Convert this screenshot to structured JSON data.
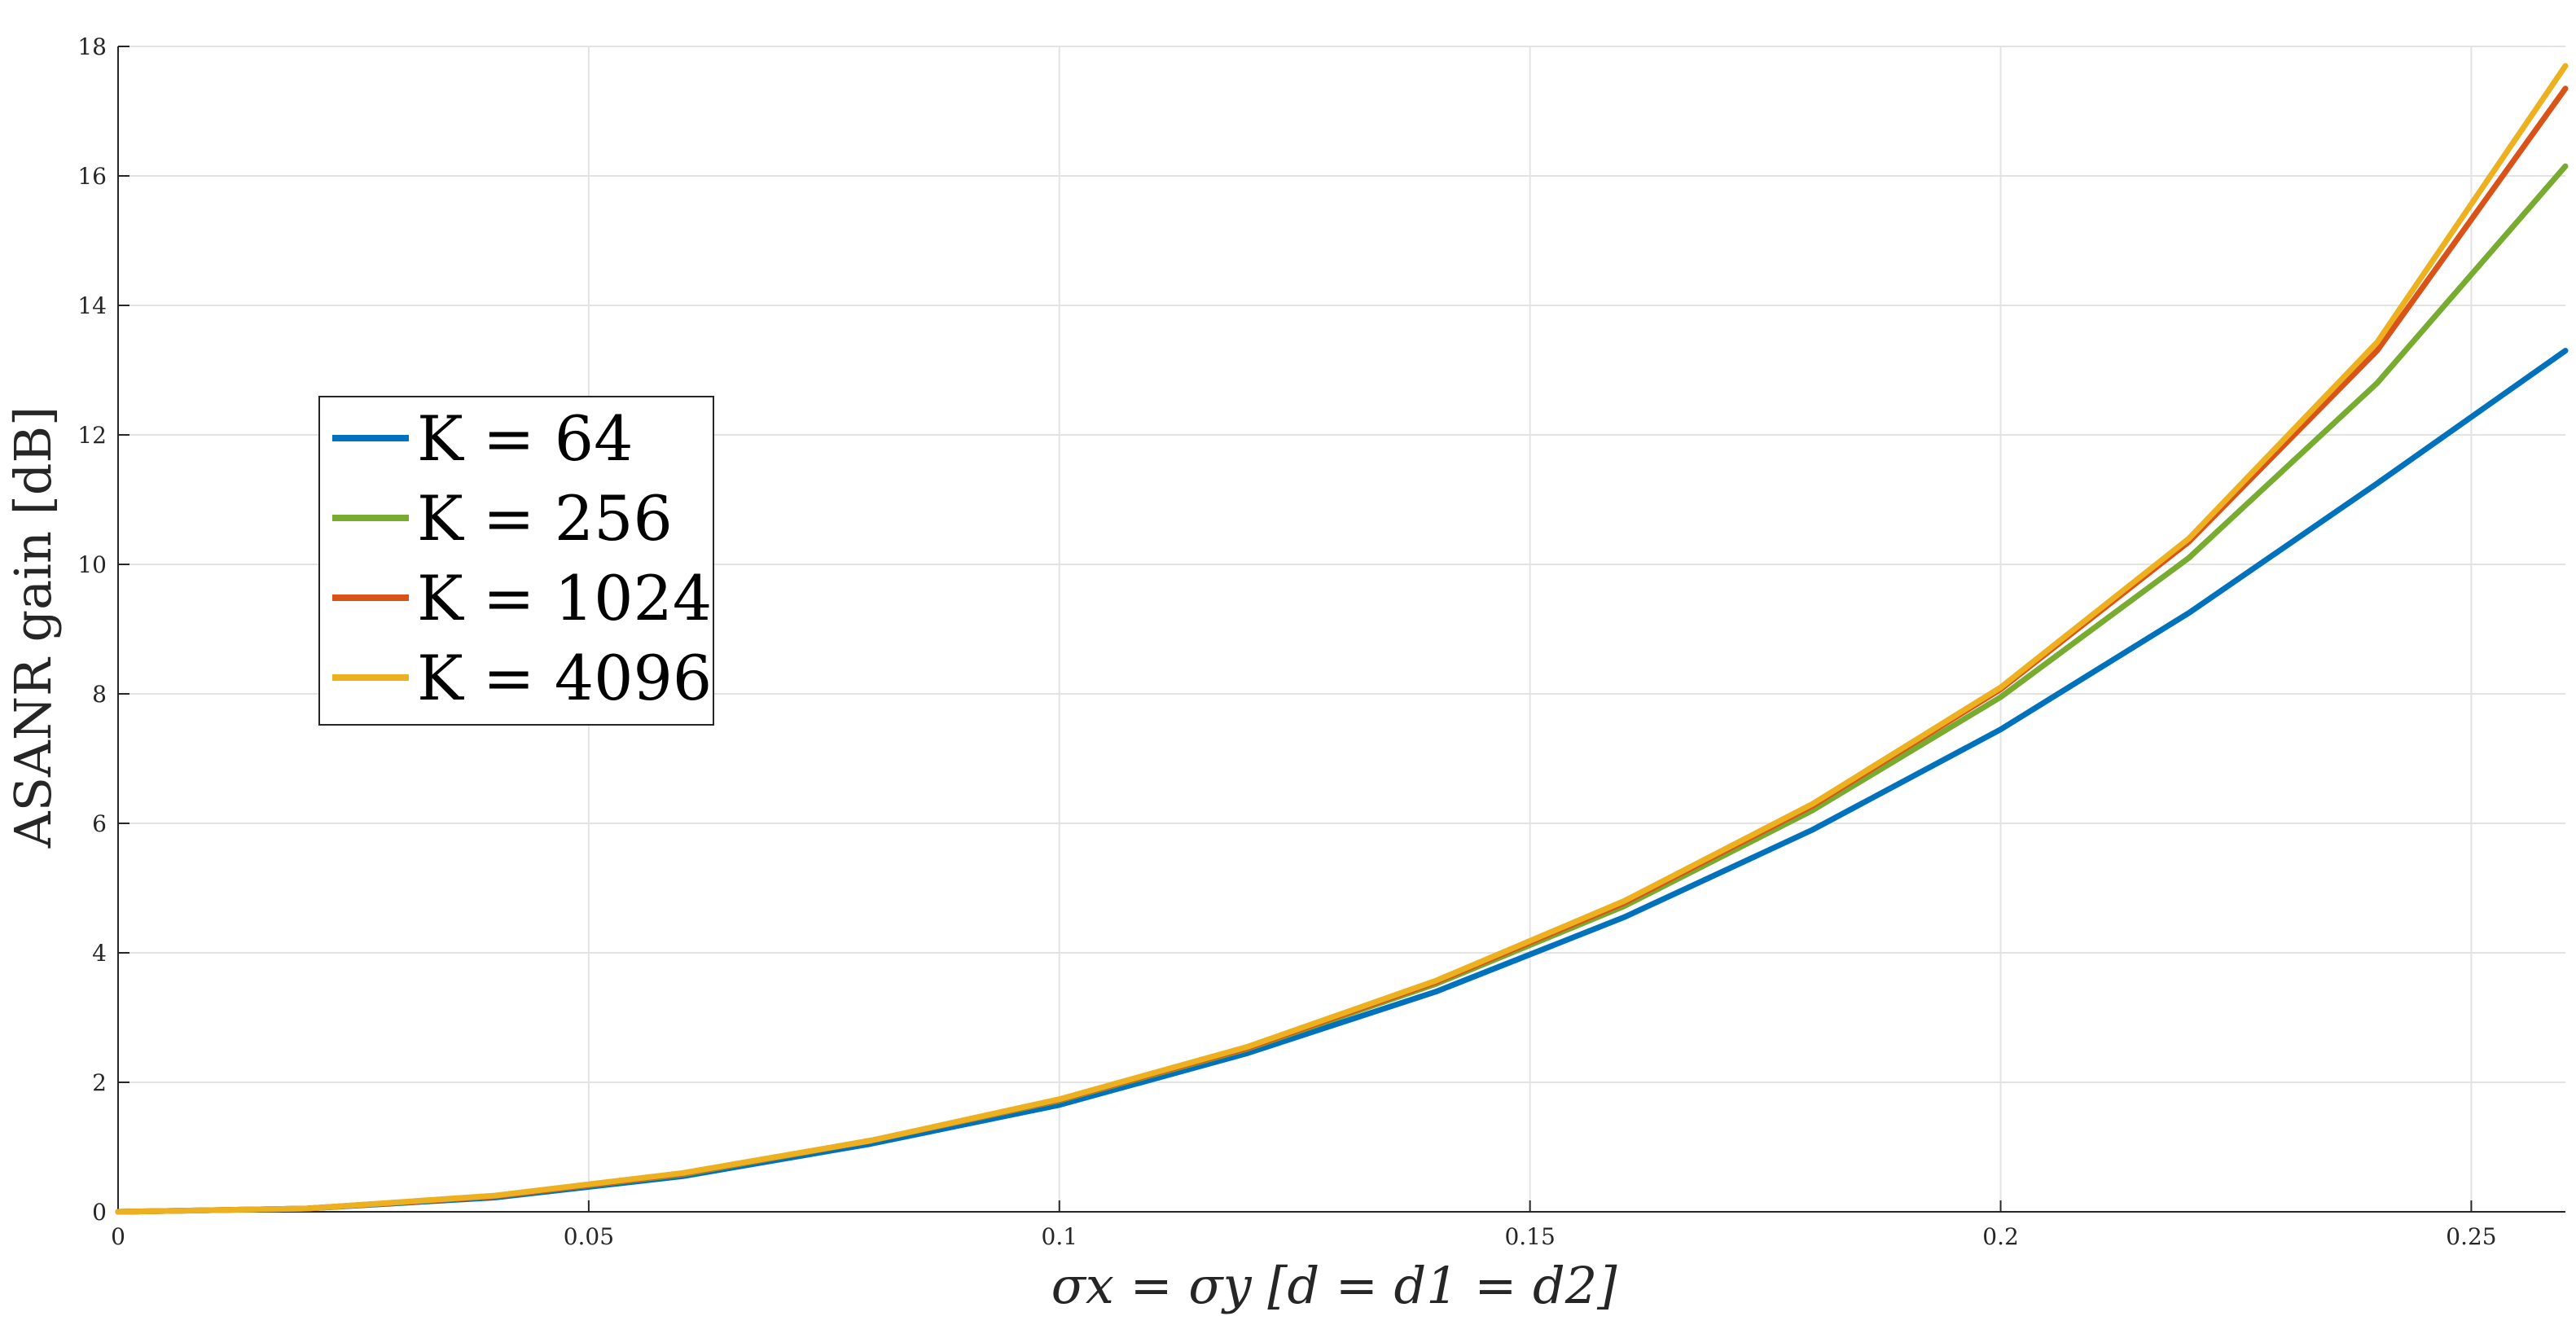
{
  "chart_data": {
    "type": "line",
    "xlabel": "σx = σy [d = d1 = d2]",
    "ylabel": "ASANR gain [dB]",
    "xlim": [
      0,
      0.26
    ],
    "ylim": [
      0,
      18
    ],
    "xticks": [
      0,
      0.05,
      0.1,
      0.15,
      0.2,
      0.25
    ],
    "xtick_labels": [
      "0",
      "0.05",
      "0.1",
      "0.15",
      "0.2",
      "0.25"
    ],
    "yticks": [
      0,
      2,
      4,
      6,
      8,
      10,
      12,
      14,
      16,
      18
    ],
    "ytick_labels": [
      "0",
      "2",
      "4",
      "6",
      "8",
      "10",
      "12",
      "14",
      "16",
      "18"
    ],
    "grid": true,
    "legend_position": "left",
    "x": [
      0,
      0.02,
      0.04,
      0.06,
      0.08,
      0.1,
      0.12,
      0.14,
      0.16,
      0.18,
      0.2,
      0.22,
      0.24,
      0.26
    ],
    "series": [
      {
        "name": "K = 64",
        "color": "#0072BD",
        "values": [
          0,
          0.05,
          0.22,
          0.55,
          1.05,
          1.65,
          2.45,
          3.4,
          4.55,
          5.9,
          7.45,
          9.25,
          11.25,
          13.3
        ]
      },
      {
        "name": "K = 256",
        "color": "#77AC30",
        "values": [
          0,
          0.05,
          0.24,
          0.58,
          1.1,
          1.72,
          2.52,
          3.52,
          4.72,
          6.2,
          7.95,
          10.1,
          12.8,
          16.15
        ]
      },
      {
        "name": "K = 1024",
        "color": "#D95319",
        "values": [
          0,
          0.05,
          0.24,
          0.59,
          1.1,
          1.73,
          2.53,
          3.55,
          4.77,
          6.27,
          8.07,
          10.35,
          13.3,
          17.35
        ]
      },
      {
        "name": "K = 4096",
        "color": "#EDB120",
        "values": [
          0,
          0.05,
          0.25,
          0.6,
          1.1,
          1.74,
          2.55,
          3.57,
          4.8,
          6.3,
          8.1,
          10.4,
          13.43,
          17.7
        ]
      }
    ]
  }
}
